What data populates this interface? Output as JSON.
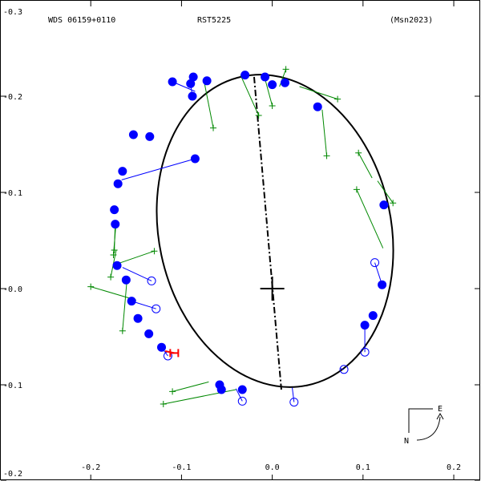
{
  "header": {
    "left": "WDS 06159+0110",
    "center": "RST5225",
    "right": "(Msn2023)"
  },
  "compass": {
    "east": "E",
    "north": "N"
  },
  "colors": {
    "orbit": "#000000",
    "measure_blue": "#0000ff",
    "measure_green": "#008800",
    "highlight_red": "#ff0000"
  },
  "chart_data": {
    "type": "scatter",
    "title": "",
    "xlim": [
      -0.3,
      0.23
    ],
    "ylim": [
      -0.2,
      0.3
    ],
    "x_ticks": [
      {
        "v": -0.2,
        "label": "-0.2"
      },
      {
        "v": -0.1,
        "label": "-0.1"
      },
      {
        "v": 0.0,
        "label": "0.0"
      },
      {
        "v": 0.1,
        "label": "0.1"
      },
      {
        "v": 0.2,
        "label": "0.2"
      }
    ],
    "y_ticks": [
      {
        "v": 0.3,
        "label": "-0.3"
      },
      {
        "v": 0.2,
        "label": "-0.2"
      },
      {
        "v": 0.1,
        "label": "-0.1"
      },
      {
        "v": 0.0,
        "label": "-0.0"
      },
      {
        "v": -0.1,
        "label": "-0.1"
      },
      {
        "v": -0.2,
        "label": "-0.2"
      }
    ],
    "primary": [
      0.0,
      0.0
    ],
    "orbit_ellipse": {
      "cx": 0.003,
      "cy": 0.06,
      "rx": 0.128,
      "ry": 0.164,
      "angle_deg": -12
    },
    "line_of_nodes": [
      [
        -0.02,
        0.22
      ],
      [
        0.01,
        -0.105
      ]
    ],
    "blue_filled": [
      {
        "pos": [
          -0.11,
          0.215
        ],
        "pred": [
          -0.085,
          0.205
        ]
      },
      {
        "pos": [
          -0.087,
          0.22
        ],
        "pred": [
          -0.09,
          0.212
        ]
      },
      {
        "pos": [
          -0.09,
          0.213
        ],
        "pred": [
          -0.09,
          0.212
        ]
      },
      {
        "pos": [
          -0.088,
          0.2
        ],
        "pred": [
          -0.09,
          0.212
        ]
      },
      {
        "pos": [
          -0.072,
          0.216
        ],
        "pred": [
          -0.072,
          0.216
        ]
      },
      {
        "pos": [
          -0.153,
          0.16
        ],
        "pred": [
          -0.153,
          0.16
        ]
      },
      {
        "pos": [
          -0.135,
          0.158
        ],
        "pred": [
          -0.135,
          0.158
        ]
      },
      {
        "pos": [
          -0.085,
          0.135
        ],
        "pred": [
          -0.166,
          0.113
        ]
      },
      {
        "pos": [
          -0.165,
          0.122
        ],
        "pred": [
          -0.165,
          0.122
        ]
      },
      {
        "pos": [
          -0.17,
          0.109
        ],
        "pred": [
          -0.17,
          0.109
        ]
      },
      {
        "pos": [
          -0.174,
          0.082
        ],
        "pred": [
          -0.174,
          0.082
        ]
      },
      {
        "pos": [
          -0.173,
          0.067
        ],
        "pred": [
          -0.173,
          0.067
        ]
      },
      {
        "pos": [
          -0.171,
          0.024
        ],
        "pred": [
          -0.171,
          0.024
        ]
      },
      {
        "pos": [
          -0.161,
          0.009
        ],
        "pred": [
          -0.161,
          0.009
        ]
      },
      {
        "pos": [
          -0.155,
          -0.013
        ],
        "pred": [
          -0.155,
          -0.013
        ]
      },
      {
        "pos": [
          -0.148,
          -0.031
        ],
        "pred": [
          -0.148,
          -0.031
        ]
      },
      {
        "pos": [
          -0.136,
          -0.047
        ],
        "pred": [
          -0.136,
          -0.047
        ]
      },
      {
        "pos": [
          -0.122,
          -0.061
        ],
        "pred": [
          -0.122,
          -0.061
        ]
      },
      {
        "pos": [
          -0.058,
          -0.1
        ],
        "pred": [
          -0.058,
          -0.1
        ]
      },
      {
        "pos": [
          -0.056,
          -0.105
        ],
        "pred": [
          -0.056,
          -0.105
        ]
      },
      {
        "pos": [
          -0.033,
          -0.105
        ],
        "pred": [
          -0.033,
          -0.105
        ]
      },
      {
        "pos": [
          -0.03,
          0.222
        ],
        "pred": [
          -0.03,
          0.222
        ]
      },
      {
        "pos": [
          -0.008,
          0.22
        ],
        "pred": [
          -0.008,
          0.22
        ]
      },
      {
        "pos": [
          0.0,
          0.212
        ],
        "pred": [
          0.0,
          0.212
        ]
      },
      {
        "pos": [
          0.014,
          0.214
        ],
        "pred": [
          0.014,
          0.214
        ]
      },
      {
        "pos": [
          0.05,
          0.189
        ],
        "pred": [
          0.05,
          0.189
        ]
      },
      {
        "pos": [
          0.123,
          0.087
        ],
        "pred": [
          0.123,
          0.087
        ]
      },
      {
        "pos": [
          0.121,
          0.004
        ],
        "pred": [
          0.121,
          0.004
        ]
      },
      {
        "pos": [
          0.111,
          -0.028
        ],
        "pred": [
          0.111,
          -0.028
        ]
      },
      {
        "pos": [
          0.102,
          -0.038
        ],
        "pred": [
          0.102,
          -0.038
        ]
      }
    ],
    "blue_open": [
      {
        "pos": [
          -0.133,
          0.008
        ],
        "pred": [
          -0.165,
          0.022
        ]
      },
      {
        "pos": [
          -0.128,
          -0.021
        ],
        "pred": [
          -0.155,
          -0.013
        ]
      },
      {
        "pos": [
          -0.115,
          -0.07
        ],
        "pred": [
          -0.122,
          -0.061
        ]
      },
      {
        "pos": [
          -0.033,
          -0.117
        ],
        "pred": [
          -0.04,
          -0.104
        ]
      },
      {
        "pos": [
          0.024,
          -0.118
        ],
        "pred": [
          0.022,
          -0.103
        ]
      },
      {
        "pos": [
          0.079,
          -0.084
        ],
        "pred": [
          0.075,
          -0.083
        ]
      },
      {
        "pos": [
          0.102,
          -0.066
        ],
        "pred": [
          0.102,
          -0.038
        ]
      },
      {
        "pos": [
          0.113,
          0.027
        ],
        "pred": [
          0.121,
          0.004
        ]
      }
    ],
    "green_plus": [
      {
        "pos": [
          0.015,
          0.228
        ],
        "pred": [
          0.008,
          0.21
        ]
      },
      {
        "pos": [
          -0.015,
          0.18
        ],
        "pred": [
          -0.035,
          0.222
        ]
      },
      {
        "pos": [
          0.0,
          0.19
        ],
        "pred": [
          -0.008,
          0.218
        ]
      },
      {
        "pos": [
          -0.065,
          0.167
        ],
        "pred": [
          -0.075,
          0.215
        ]
      },
      {
        "pos": [
          0.072,
          0.197
        ],
        "pred": [
          0.03,
          0.21
        ]
      },
      {
        "pos": [
          0.06,
          0.138
        ],
        "pred": [
          0.055,
          0.186
        ]
      },
      {
        "pos": [
          0.095,
          0.141
        ],
        "pred": [
          0.11,
          0.115
        ]
      },
      {
        "pos": [
          0.093,
          0.103
        ],
        "pred": [
          0.122,
          0.042
        ]
      },
      {
        "pos": [
          0.133,
          0.089
        ],
        "pred": [
          0.116,
          0.112
        ]
      },
      {
        "pos": [
          -0.13,
          0.039
        ],
        "pred": [
          -0.17,
          0.026
        ]
      },
      {
        "pos": [
          -0.174,
          0.04
        ],
        "pred": [
          -0.173,
          0.07
        ]
      },
      {
        "pos": [
          -0.178,
          0.012
        ],
        "pred": [
          -0.172,
          0.04
        ]
      },
      {
        "pos": [
          -0.2,
          0.002
        ],
        "pred": [
          -0.15,
          -0.012
        ]
      },
      {
        "pos": [
          -0.165,
          -0.044
        ],
        "pred": [
          -0.16,
          0.01
        ]
      },
      {
        "pos": [
          -0.11,
          -0.107
        ],
        "pred": [
          -0.07,
          -0.097
        ]
      },
      {
        "pos": [
          -0.12,
          -0.12
        ],
        "pred": [
          -0.04,
          -0.105
        ]
      },
      {
        "pos": [
          -0.175,
          0.035
        ],
        "pred": [
          -0.172,
          0.07
        ]
      }
    ],
    "highlight": {
      "pos": [
        -0.108,
        -0.067
      ],
      "pred": [
        -0.118,
        -0.065
      ]
    }
  }
}
